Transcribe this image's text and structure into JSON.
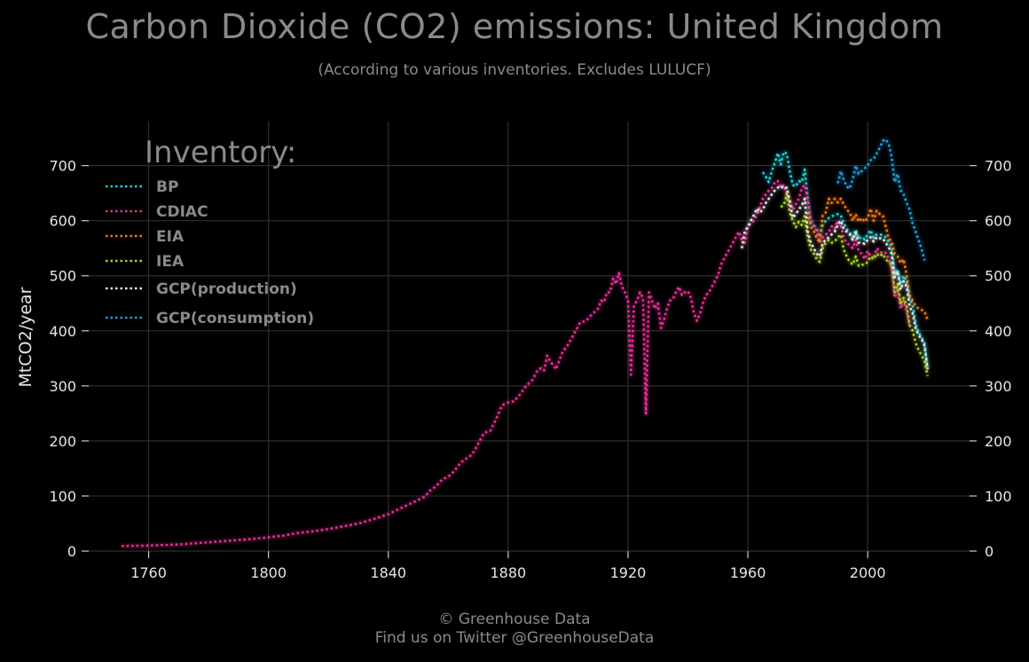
{
  "chart_data": {
    "type": "line",
    "title": "Carbon Dioxide (CO2) emissions: United Kingdom",
    "subtitle": "(According to various inventories. Excludes LULUCF)",
    "ylabel": "MtCO2/year",
    "xlabel": "",
    "xlim": [
      1740,
      2034
    ],
    "ylim": [
      0,
      780
    ],
    "xticks": [
      1760,
      1800,
      1840,
      1880,
      1920,
      1960,
      2000
    ],
    "yticks": [
      0,
      100,
      200,
      300,
      400,
      500,
      600,
      700
    ],
    "grid": true,
    "legend_position": "top-left",
    "legend_title": "Inventory:",
    "line_style": "dotted",
    "series": [
      {
        "name": "BP",
        "color": "#1ed0dc",
        "x": [
          1965,
          1966,
          1967,
          1968,
          1969,
          1970,
          1971,
          1972,
          1973,
          1974,
          1975,
          1976,
          1977,
          1978,
          1979,
          1980,
          1981,
          1982,
          1983,
          1984,
          1985,
          1986,
          1987,
          1988,
          1989,
          1990,
          1991,
          1992,
          1993,
          1994,
          1995,
          1996,
          1997,
          1998,
          1999,
          2000,
          2001,
          2002,
          2003,
          2004,
          2005,
          2006,
          2007,
          2008,
          2009,
          2010,
          2011,
          2012,
          2013,
          2014,
          2015,
          2016,
          2017,
          2018,
          2019,
          2020
        ],
        "y": [
          688,
          680,
          670,
          690,
          705,
          723,
          702,
          725,
          722,
          690,
          665,
          662,
          672,
          670,
          693,
          640,
          600,
          592,
          585,
          570,
          592,
          600,
          605,
          608,
          610,
          612,
          610,
          595,
          585,
          578,
          570,
          584,
          567,
          571,
          566,
          575,
          583,
          569,
          575,
          575,
          574,
          570,
          562,
          552,
          502,
          512,
          485,
          500,
          490,
          460,
          447,
          412,
          397,
          388,
          377,
          330
        ]
      },
      {
        "name": "CDIAC",
        "color": "#ee2e9b",
        "x": [
          1751,
          1755,
          1760,
          1765,
          1770,
          1775,
          1780,
          1785,
          1790,
          1795,
          1800,
          1805,
          1810,
          1815,
          1820,
          1825,
          1830,
          1835,
          1840,
          1845,
          1850,
          1852,
          1854,
          1856,
          1858,
          1860,
          1862,
          1864,
          1866,
          1868,
          1870,
          1872,
          1874,
          1876,
          1878,
          1880,
          1882,
          1884,
          1886,
          1888,
          1890,
          1891,
          1892,
          1893,
          1894,
          1896,
          1898,
          1900,
          1902,
          1904,
          1906,
          1908,
          1910,
          1911,
          1912,
          1913,
          1914,
          1915,
          1916,
          1917,
          1918,
          1919,
          1920,
          1921,
          1922,
          1923,
          1924,
          1925,
          1926,
          1927,
          1928,
          1929,
          1930,
          1931,
          1932,
          1933,
          1934,
          1935,
          1936,
          1937,
          1938,
          1939,
          1940,
          1941,
          1942,
          1943,
          1944,
          1945,
          1946,
          1947,
          1948,
          1949,
          1950,
          1951,
          1952,
          1953,
          1954,
          1955,
          1956,
          1957,
          1958,
          1959,
          1960,
          1961,
          1962,
          1963,
          1964,
          1965,
          1966,
          1967,
          1968,
          1969,
          1970,
          1971,
          1972,
          1973,
          1974,
          1975,
          1976,
          1977,
          1978,
          1979,
          1980,
          1981,
          1982,
          1983,
          1984,
          1985,
          1986,
          1987,
          1988,
          1989,
          1990,
          1991,
          1992,
          1993,
          1994,
          1995,
          1996,
          1997,
          1998,
          1999,
          2000,
          2001,
          2002,
          2003,
          2004,
          2005,
          2006,
          2007,
          2008,
          2009,
          2010,
          2011,
          2012,
          2013,
          2014
        ],
        "y": [
          9,
          9.5,
          10,
          11,
          12,
          14,
          16,
          18,
          20,
          22,
          25,
          28,
          33,
          36,
          40,
          45,
          50,
          58,
          67,
          80,
          93,
          98,
          110,
          118,
          130,
          135,
          145,
          160,
          168,
          175,
          195,
          215,
          218,
          240,
          265,
          270,
          272,
          285,
          300,
          310,
          330,
          332,
          328,
          355,
          345,
          330,
          360,
          375,
          395,
          415,
          418,
          430,
          440,
          455,
          452,
          470,
          470,
          495,
          485,
          505,
          480,
          470,
          455,
          320,
          445,
          455,
          470,
          460,
          250,
          470,
          455,
          440,
          450,
          405,
          420,
          440,
          455,
          458,
          470,
          480,
          465,
          470,
          472,
          460,
          432,
          418,
          430,
          450,
          465,
          470,
          480,
          490,
          500,
          520,
          530,
          540,
          550,
          560,
          570,
          580,
          565,
          560,
          590,
          595,
          600,
          610,
          625,
          640,
          648,
          655,
          660,
          670,
          672,
          660,
          665,
          648,
          638,
          620,
          630,
          640,
          660,
          665,
          640,
          600,
          590,
          580,
          560,
          570,
          575,
          580,
          590,
          585,
          600,
          592,
          570,
          560,
          555,
          550,
          565,
          545,
          540,
          530,
          545,
          535,
          530,
          550,
          545,
          540,
          542,
          530,
          515,
          460,
          475,
          440,
          455,
          435,
          410
        ]
      },
      {
        "name": "EIA",
        "color": "#f37a12",
        "x": [
          1980,
          1981,
          1982,
          1983,
          1984,
          1985,
          1986,
          1987,
          1988,
          1989,
          1990,
          1991,
          1992,
          1993,
          1994,
          1995,
          1996,
          1997,
          1998,
          1999,
          2000,
          2001,
          2002,
          2003,
          2004,
          2005,
          2006,
          2007,
          2008,
          2009,
          2010,
          2011,
          2012,
          2013,
          2014,
          2015,
          2016,
          2017,
          2018,
          2019,
          2020
        ],
        "y": [
          615,
          590,
          580,
          568,
          560,
          610,
          615,
          640,
          632,
          640,
          633,
          640,
          630,
          620,
          615,
          600,
          612,
          598,
          605,
          598,
          605,
          622,
          600,
          618,
          612,
          610,
          590,
          568,
          562,
          540,
          535,
          523,
          530,
          500,
          465,
          455,
          445,
          440,
          438,
          435,
          420
        ]
      },
      {
        "name": "IEA",
        "color": "#a8d41a",
        "x": [
          1971,
          1972,
          1973,
          1974,
          1975,
          1976,
          1977,
          1978,
          1979,
          1980,
          1981,
          1982,
          1983,
          1984,
          1985,
          1986,
          1987,
          1988,
          1989,
          1990,
          1991,
          1992,
          1993,
          1994,
          1995,
          1996,
          1997,
          1998,
          1999,
          2000,
          2001,
          2002,
          2003,
          2004,
          2005,
          2006,
          2007,
          2008,
          2009,
          2010,
          2011,
          2012,
          2013,
          2014,
          2015,
          2016,
          2017,
          2018,
          2019,
          2020
        ],
        "y": [
          625,
          628,
          648,
          615,
          600,
          588,
          598,
          592,
          608,
          570,
          548,
          540,
          530,
          525,
          550,
          560,
          565,
          560,
          562,
          570,
          575,
          548,
          535,
          525,
          520,
          535,
          518,
          520,
          520,
          525,
          535,
          530,
          540,
          535,
          540,
          530,
          525,
          520,
          470,
          485,
          450,
          460,
          445,
          410,
          400,
          378,
          365,
          355,
          345,
          318
        ]
      },
      {
        "name": "GCP(production)",
        "color": "#e8e8e8",
        "x": [
          1958,
          1959,
          1960,
          1961,
          1962,
          1963,
          1964,
          1965,
          1966,
          1967,
          1968,
          1969,
          1970,
          1971,
          1972,
          1973,
          1974,
          1975,
          1976,
          1977,
          1978,
          1979,
          1980,
          1981,
          1982,
          1983,
          1984,
          1985,
          1986,
          1987,
          1988,
          1989,
          1990,
          1991,
          1992,
          1993,
          1994,
          1995,
          1996,
          1997,
          1998,
          1999,
          2000,
          2001,
          2002,
          2003,
          2004,
          2005,
          2006,
          2007,
          2008,
          2009,
          2010,
          2011,
          2012,
          2013,
          2014,
          2015,
          2016,
          2017,
          2018,
          2019,
          2020
        ],
        "y": [
          550,
          582,
          588,
          600,
          610,
          622,
          615,
          620,
          632,
          640,
          648,
          655,
          660,
          663,
          658,
          660,
          635,
          605,
          612,
          620,
          628,
          640,
          580,
          560,
          550,
          540,
          535,
          560,
          565,
          570,
          575,
          580,
          592,
          600,
          585,
          580,
          575,
          565,
          578,
          560,
          560,
          558,
          565,
          570,
          562,
          570,
          568,
          568,
          560,
          552,
          540,
          497,
          508,
          475,
          490,
          480,
          445,
          432,
          405,
          392,
          385,
          372,
          330
        ]
      },
      {
        "name": "GCP(consumption)",
        "color": "#1aa0e0",
        "x": [
          1990,
          1991,
          1992,
          1993,
          1994,
          1995,
          1996,
          1997,
          1998,
          1999,
          2000,
          2001,
          2002,
          2003,
          2004,
          2005,
          2006,
          2007,
          2008,
          2009,
          2010,
          2011,
          2012,
          2013,
          2014,
          2015,
          2016,
          2017,
          2018,
          2019
        ],
        "y": [
          668,
          690,
          675,
          662,
          658,
          675,
          700,
          685,
          690,
          695,
          700,
          710,
          712,
          722,
          732,
          745,
          748,
          740,
          715,
          670,
          685,
          655,
          648,
          632,
          620,
          595,
          580,
          565,
          548,
          528
        ]
      }
    ]
  },
  "footer": {
    "line1": "© Greenhouse Data",
    "line2": "Find us on Twitter @GreenhouseData"
  }
}
